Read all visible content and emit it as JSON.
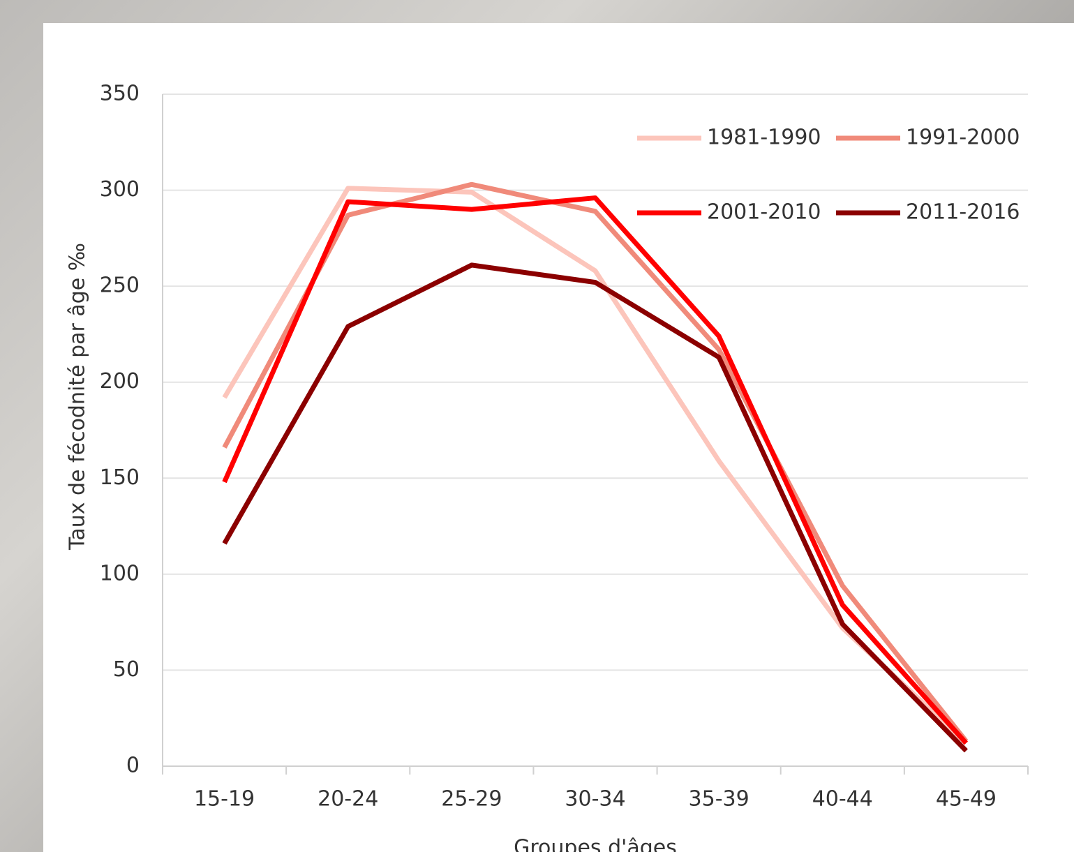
{
  "chart_data": {
    "type": "line",
    "x_label": "Groupes d'âges",
    "y_label": "Taux de fécodnité par âge ‰",
    "categories": [
      "15-19",
      "20-24",
      "25-29",
      "30-34",
      "35-39",
      "40-44",
      "45-49"
    ],
    "series": [
      {
        "name": "1981-1990",
        "color": "#fcc5bb",
        "values": [
          192,
          301,
          299,
          258,
          159,
          72,
          12
        ]
      },
      {
        "name": "1991-2000",
        "color": "#f08a7a",
        "values": [
          166,
          287,
          303,
          289,
          217,
          94,
          13
        ]
      },
      {
        "name": "2001-2010",
        "color": "#ff0000",
        "values": [
          148,
          294,
          290,
          296,
          224,
          84,
          12
        ]
      },
      {
        "name": "2011-2016",
        "color": "#8b0000",
        "values": [
          116,
          229,
          261,
          252,
          213,
          74,
          8
        ]
      }
    ],
    "ylim": [
      0,
      350
    ],
    "yticks": [
      0,
      50,
      100,
      150,
      200,
      250,
      300,
      350
    ],
    "grid": true,
    "legend": "upper right"
  }
}
